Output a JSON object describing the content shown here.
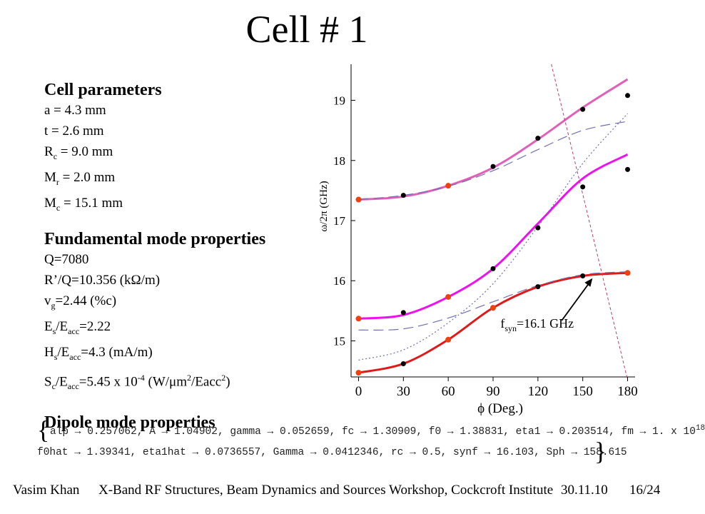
{
  "slide": {
    "title": "Cell # 1",
    "cell_params": {
      "heading": "Cell parameters",
      "a": "a = 4.3 mm",
      "t": "t = 2.6 mm",
      "Rc_main": "R",
      "Rc_sub": "c",
      "Rc_rest": " = 9.0 mm",
      "Mr_main": "M",
      "Mr_sub": "r",
      "Mr_rest": " = 2.0 mm",
      "Mc_main": "M",
      "Mc_sub": "c",
      "Mc_rest": " = 15.1 mm"
    },
    "fundamental": {
      "heading": "Fundamental mode properties",
      "Q": "Q=7080",
      "RQ": "R’/Q=10.356 (kΩ/m)",
      "vg_main": "v",
      "vg_sub": "g",
      "vg_rest": "=2.44 (%c)",
      "Es_a": "E",
      "Es_as": "s",
      "Es_b": "/E",
      "Es_bs": "acc",
      "Es_c": "=2.22",
      "Hs_a": "H",
      "Hs_as": "s",
      "Hs_b": "/E",
      "Hs_bs": "acc",
      "Hs_c": "=4.3 (mA/m)",
      "Sc_a": "S",
      "Sc_as": "c",
      "Sc_b": "/E",
      "Sc_bs": "acc",
      "Sc_c": "=5.45 x 10",
      "Sc_exp": "-4",
      "Sc_d": " (W/μm",
      "Sc_exp2": "2",
      "Sc_e": "/Eacc",
      "Sc_exp3": "2",
      "Sc_f": ")"
    },
    "dipole_heading": "Dipole mode properties",
    "result_line1": "alp → 0.257062, A → 1.04902, gamma → 0.052659, fc → 1.30909, f0 → 1.38831, eta1 → 0.203514, fm → 1. x 10",
    "result_line1_exp": "18",
    "result_line2": "f0hat → 1.39341, eta1hat → 0.0736557, Gamma → 0.0412346, rc → 0.5, synf → 16.103, Sph → 158.615",
    "brace_open": "{",
    "brace_close": "}",
    "footer_author": "Vasim Khan",
    "footer_event": "X-Band RF Structures, Beam Dynamics and Sources Workshop, Cockcroft Institute",
    "footer_date": "30.11.10",
    "footer_page": "16/24"
  },
  "chart_data": {
    "type": "line",
    "xlabel": "ϕ (Deg.)",
    "ylabel": "ω/2π (GHz)",
    "xlim": [
      -5,
      185
    ],
    "ylim": [
      14.4,
      19.6
    ],
    "x_ticks": [
      "0",
      "30",
      "60",
      "90",
      "120",
      "150",
      "180"
    ],
    "y_ticks": [
      "15",
      "16",
      "17",
      "18",
      "19"
    ],
    "annotation": {
      "text_main": "f",
      "text_sub": "syn",
      "text_rest": "=16.1 GHz",
      "x": 157,
      "y": 16.1
    },
    "colors": {
      "upper": "#e060b8",
      "middle": "#ee10ee",
      "lower": "#e01818",
      "dashed": "#7070b0",
      "light_line": "#b04070",
      "points": "#000000",
      "orange_points": "#f04010"
    },
    "series": [
      {
        "style": "upper",
        "x": [
          0,
          30,
          60,
          90,
          120,
          150,
          180
        ],
        "y": [
          17.35,
          17.4,
          17.58,
          17.88,
          18.35,
          18.88,
          19.35
        ]
      },
      {
        "style": "middle",
        "x": [
          0,
          30,
          60,
          90,
          120,
          150,
          180
        ],
        "y": [
          15.37,
          15.43,
          15.73,
          16.2,
          16.95,
          17.7,
          18.1
        ]
      },
      {
        "style": "lower",
        "x": [
          0,
          30,
          60,
          90,
          120,
          150,
          180
        ],
        "y": [
          14.47,
          14.62,
          15.02,
          15.55,
          15.9,
          16.08,
          16.13
        ]
      },
      {
        "style": "dashed",
        "x": [
          0,
          30,
          60,
          90,
          120,
          150,
          180
        ],
        "y": [
          17.35,
          17.42,
          17.57,
          17.83,
          18.18,
          18.5,
          18.65
        ]
      },
      {
        "style": "dashed",
        "x": [
          0,
          30,
          60,
          90,
          120,
          150,
          180
        ],
        "y": [
          15.18,
          15.2,
          15.38,
          15.65,
          15.92,
          16.1,
          16.15
        ]
      },
      {
        "style": "dotted",
        "x": [
          0,
          30,
          60,
          90,
          120,
          150,
          180
        ],
        "y": [
          14.68,
          14.85,
          15.3,
          15.95,
          16.9,
          17.95,
          18.78
        ]
      },
      {
        "style": "light_line",
        "x": [
          129,
          180
        ],
        "y": [
          19.6,
          14.35
        ]
      }
    ],
    "black_points": {
      "x": [
        30,
        60,
        90,
        120,
        150,
        180,
        30,
        90,
        120,
        150,
        180,
        30,
        120,
        150
      ],
      "y": [
        17.42,
        17.58,
        17.9,
        18.37,
        18.85,
        19.08,
        15.47,
        16.2,
        16.88,
        17.56,
        17.85,
        14.62,
        15.9,
        16.08
      ]
    },
    "orange_points": {
      "x": [
        0,
        60,
        0,
        60,
        0,
        60,
        90,
        180
      ],
      "y": [
        17.35,
        17.58,
        15.37,
        15.73,
        14.47,
        15.02,
        15.55,
        16.13
      ]
    }
  }
}
